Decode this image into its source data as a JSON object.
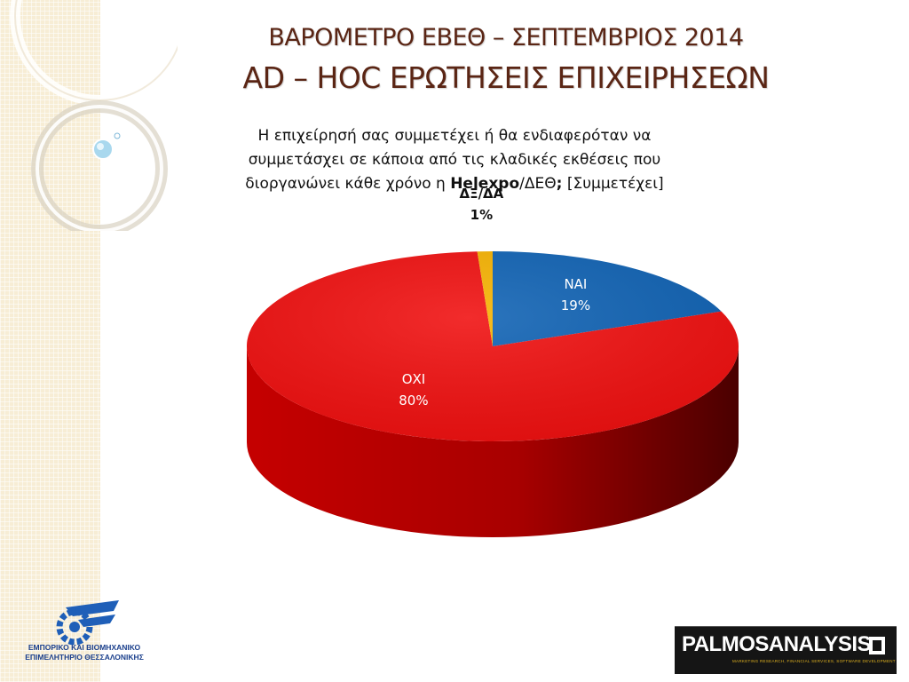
{
  "title_line1": "ΒΑΡΟΜΕΤΡΟ ΕΒΕΘ – ΣΕΠΤΕΜΒΡΙΟΣ 2014",
  "title_line2": "AD – HOC ΕΡΩΤΗΣΕΙΣ ΕΠΙΧΕΙΡΗΣΕΩΝ",
  "question": {
    "line1": "Η επιχείρησή σας συμμετέχει ή θα ενδιαφερόταν να",
    "line2": "συμμετάσχει σε κάποια από τις κλαδικές εκθέσεις που",
    "line3_pre": "διοργανώνει κάθε χρόνο η ",
    "line3_bold": "Helexpo",
    "line3_mid": "/ΔΕΘ",
    "line3_bold2": ";",
    "line3_post": " [Συμμετέχει]"
  },
  "chart_data": {
    "type": "pie",
    "slices": [
      {
        "label": "ΝΑΙ",
        "value": 19,
        "value_label": "19%",
        "color": "#0f62b4"
      },
      {
        "label": "ΟΧΙ",
        "value": 80,
        "value_label": "80%",
        "color": "#f00f0f"
      },
      {
        "label": "ΔΞ/ΔΑ",
        "value": 1,
        "value_label": "1%",
        "color": "#f6b200"
      }
    ]
  },
  "logos": {
    "left_line1": "ΕΜΠΟΡΙΚΟ ΚΑΙ ΒΙΟΜΗΧΑΝΙΚΟ",
    "left_line2": "ΕΠΙΜΕΛΗΤΗΡΙΟ ΘΕΣΣΑΛΟΝΙΚΗΣ",
    "right_part1": "PALMOS",
    "right_part2": "ANALYSIS",
    "right_tagline": "MARKETING RESEARCH, FINANCIAL SERVICES, SOFTWARE DEVELOPMENT"
  },
  "colors": {
    "title": "#5a2514",
    "band": "#f7edd5"
  }
}
